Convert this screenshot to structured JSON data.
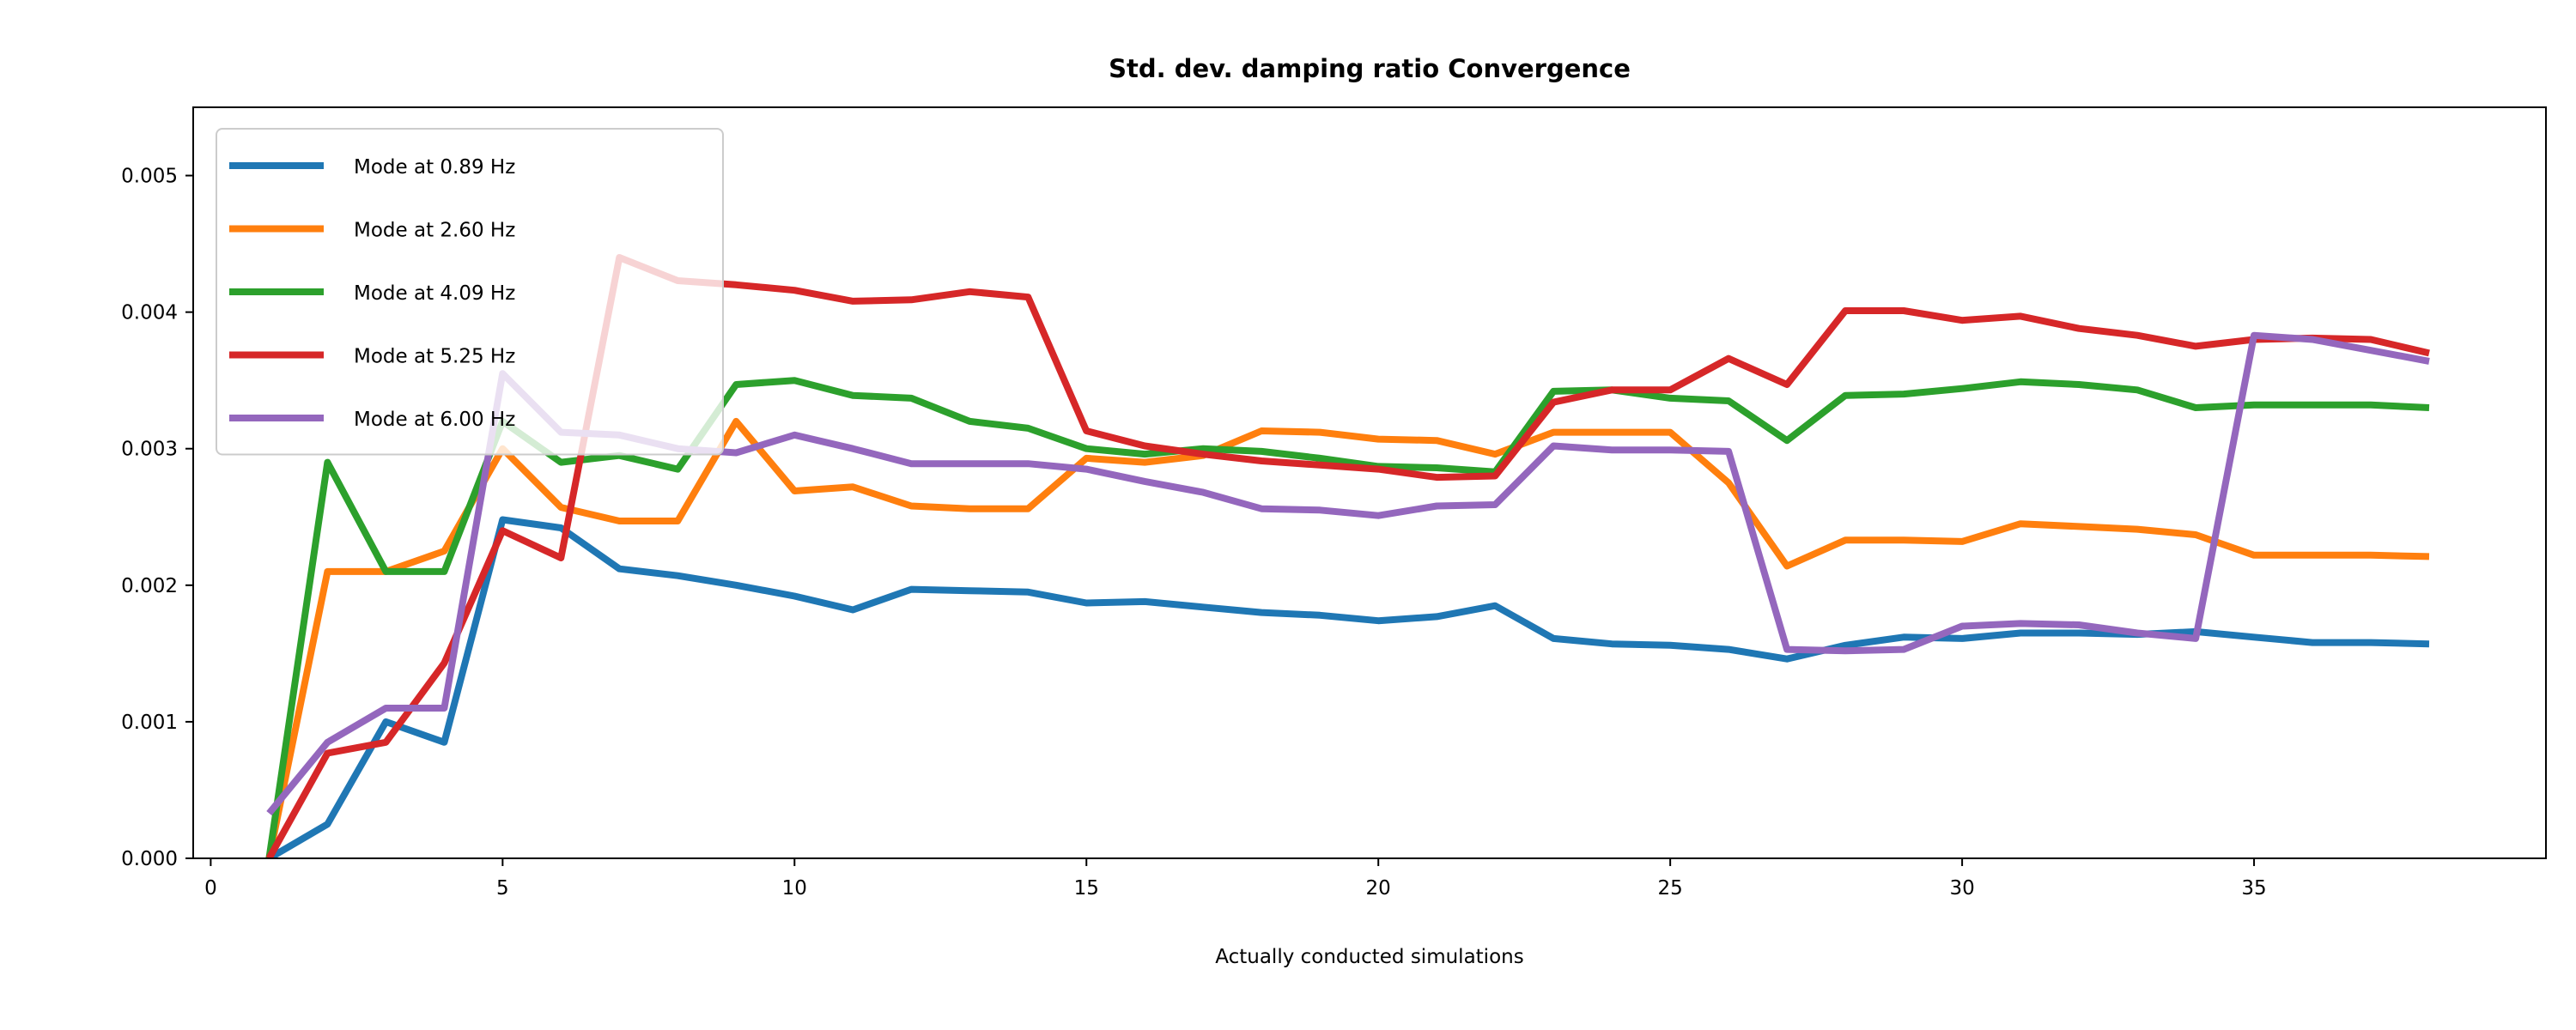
{
  "chart_data": {
    "type": "line",
    "title": "Std. dev. damping ratio Convergence",
    "xlabel": "Actually conducted simulations",
    "ylabel": "",
    "xlim": [
      -0.3,
      40
    ],
    "ylim": [
      0,
      0.0055
    ],
    "xticks": [
      0,
      5,
      10,
      15,
      20,
      25,
      30,
      35
    ],
    "yticks": [
      0.0,
      0.001,
      0.002,
      0.003,
      0.004,
      0.005
    ],
    "ytick_labels": [
      "0.000",
      "0.001",
      "0.002",
      "0.003",
      "0.004",
      "0.005"
    ],
    "grid": false,
    "legend_position": "upper-left",
    "x": [
      1,
      2,
      3,
      4,
      5,
      6,
      7,
      8,
      9,
      10,
      11,
      12,
      13,
      14,
      15,
      16,
      17,
      18,
      19,
      20,
      21,
      22,
      23,
      24,
      25,
      26,
      27,
      28,
      29,
      30,
      31,
      32,
      33,
      34,
      35,
      36,
      37,
      38
    ],
    "series": [
      {
        "name": "Mode at 0.89 Hz",
        "color": "#1f77b4",
        "values": [
          0.0,
          0.00025,
          0.001,
          0.00085,
          0.00248,
          0.00242,
          0.00212,
          0.00207,
          0.002,
          0.00192,
          0.00182,
          0.00197,
          0.00196,
          0.00195,
          0.00187,
          0.00188,
          0.00184,
          0.0018,
          0.00178,
          0.00174,
          0.00177,
          0.00185,
          0.00161,
          0.00157,
          0.00156,
          0.00153,
          0.00146,
          0.00156,
          0.00162,
          0.00161,
          0.00165,
          0.00165,
          0.00164,
          0.00166,
          0.00162,
          0.00158,
          0.00158,
          0.00157
        ]
      },
      {
        "name": "Mode at 2.60 Hz",
        "color": "#ff7f0e",
        "values": [
          0.0,
          0.0021,
          0.0021,
          0.00225,
          0.003,
          0.00257,
          0.00247,
          0.00247,
          0.0032,
          0.00269,
          0.00272,
          0.00258,
          0.00256,
          0.00256,
          0.00293,
          0.0029,
          0.00295,
          0.00313,
          0.00312,
          0.00307,
          0.00306,
          0.00296,
          0.00312,
          0.00312,
          0.00312,
          0.00275,
          0.00214,
          0.00233,
          0.00233,
          0.00232,
          0.00245,
          0.00243,
          0.00241,
          0.00237,
          0.00222,
          0.00222,
          0.00222,
          0.00221
        ]
      },
      {
        "name": "Mode at 4.09 Hz",
        "color": "#2ca02c",
        "values": [
          0.0,
          0.0029,
          0.0021,
          0.0021,
          0.0032,
          0.0029,
          0.00295,
          0.00285,
          0.00347,
          0.0035,
          0.00339,
          0.00337,
          0.0032,
          0.00315,
          0.003,
          0.00296,
          0.003,
          0.00298,
          0.00293,
          0.00287,
          0.00286,
          0.00283,
          0.00342,
          0.00343,
          0.00337,
          0.00335,
          0.00306,
          0.00339,
          0.0034,
          0.00344,
          0.00349,
          0.00347,
          0.00343,
          0.0033,
          0.00332,
          0.00332,
          0.00332,
          0.0033
        ]
      },
      {
        "name": "Mode at 5.25 Hz",
        "color": "#d62728",
        "values": [
          0.0,
          0.00077,
          0.00085,
          0.00143,
          0.0024,
          0.0022,
          0.0044,
          0.00423,
          0.0042,
          0.00416,
          0.00408,
          0.00409,
          0.00415,
          0.00411,
          0.00313,
          0.00302,
          0.00296,
          0.00291,
          0.00288,
          0.00285,
          0.00279,
          0.0028,
          0.00334,
          0.00343,
          0.00343,
          0.00366,
          0.00347,
          0.00401,
          0.00401,
          0.00394,
          0.00397,
          0.00388,
          0.00383,
          0.00375,
          0.0038,
          0.00381,
          0.0038,
          0.0037
        ]
      },
      {
        "name": "Mode at 6.00 Hz",
        "color": "#9467bd",
        "values": [
          0.00033,
          0.00085,
          0.0011,
          0.0011,
          0.00355,
          0.00312,
          0.0031,
          0.003,
          0.00297,
          0.0031,
          0.003,
          0.00289,
          0.00289,
          0.00289,
          0.00285,
          0.00276,
          0.00268,
          0.00256,
          0.00255,
          0.00251,
          0.00258,
          0.00259,
          0.00302,
          0.00299,
          0.00299,
          0.00298,
          0.00153,
          0.00152,
          0.00153,
          0.0017,
          0.00172,
          0.00171,
          0.00165,
          0.00161,
          0.00383,
          0.0038,
          0.00372,
          0.00364
        ]
      }
    ]
  }
}
